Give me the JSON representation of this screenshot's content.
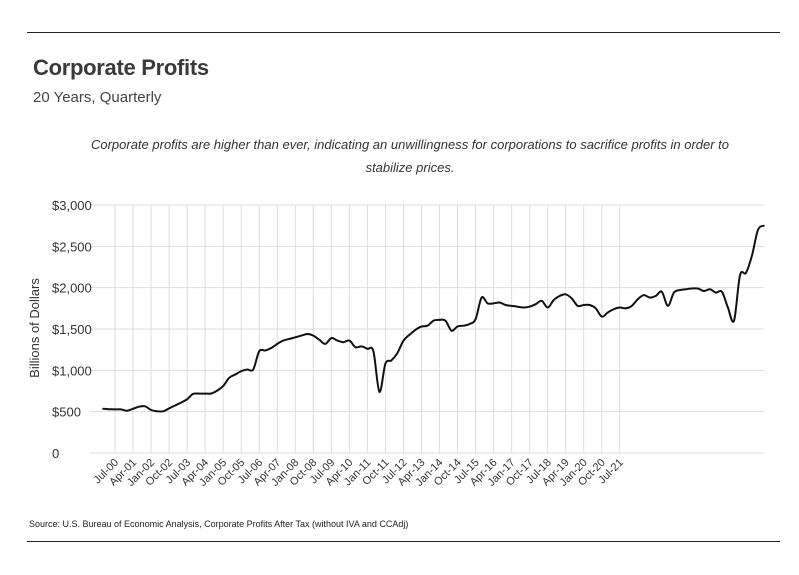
{
  "header": {
    "title": "Corporate Profits",
    "subtitle": "20 Years, Quarterly",
    "annotation": "Corporate profits are higher than ever, indicating an unwillingness for corporations to sacrifice profits in order to stabilize prices."
  },
  "footer": {
    "source": "Source: U.S. Bureau of Economic Analysis, Corporate Profits After Tax (without IVA and CCAdj)"
  },
  "colors": {
    "line": "#111111",
    "grid": "#dddddd",
    "rule": "#222222"
  },
  "chart_data": {
    "type": "line",
    "title": "Corporate Profits",
    "ylabel": "Billions of Dollars",
    "xlabel": "",
    "ylim": [
      0,
      3000
    ],
    "grid": "vertical and horizontal",
    "y_ticks": [
      {
        "value": 0,
        "label": "0"
      },
      {
        "value": 500,
        "label": "$500"
      },
      {
        "value": 1000,
        "label": "$1,000"
      },
      {
        "value": 1500,
        "label": "$1,500"
      },
      {
        "value": 2000,
        "label": "$2,000"
      },
      {
        "value": 2500,
        "label": "$2,500"
      },
      {
        "value": 3000,
        "label": "$3,000"
      }
    ],
    "x_tick_labels": [
      "Jul-00",
      "Apr-01",
      "Jan-02",
      "Oct-02",
      "Jul-03",
      "Apr-04",
      "Jan-05",
      "Oct-05",
      "Jul-06",
      "Apr-07",
      "Jan-08",
      "Oct-08",
      "Jul-09",
      "Apr-10",
      "Jan-11",
      "Oct-11",
      "Jul-12",
      "Apr-13",
      "Jan-14",
      "Oct-14",
      "Jul-15",
      "Apr-16",
      "Jan-17",
      "Oct-17",
      "Jul-18",
      "Apr-19",
      "Jan-20",
      "Oct-20",
      "Jul-21"
    ],
    "series": [
      {
        "name": "Corporate Profits After Tax",
        "start": "Jan-00",
        "frequency": "quarterly",
        "values": [
          535,
          530,
          528,
          528,
          512,
          535,
          560,
          565,
          520,
          505,
          505,
          540,
          575,
          610,
          650,
          715,
          718,
          718,
          720,
          755,
          810,
          910,
          950,
          990,
          1010,
          1010,
          1230,
          1240,
          1270,
          1320,
          1360,
          1380,
          1400,
          1420,
          1440,
          1420,
          1370,
          1320,
          1390,
          1360,
          1340,
          1360,
          1280,
          1290,
          1260,
          1230,
          740,
          1080,
          1120,
          1210,
          1360,
          1430,
          1490,
          1530,
          1540,
          1600,
          1610,
          1600,
          1480,
          1530,
          1540,
          1560,
          1620,
          1880,
          1810,
          1810,
          1820,
          1790,
          1780,
          1770,
          1760,
          1770,
          1800,
          1840,
          1760,
          1850,
          1900,
          1920,
          1870,
          1780,
          1790,
          1790,
          1750,
          1650,
          1700,
          1740,
          1760,
          1750,
          1780,
          1860,
          1910,
          1880,
          1900,
          1950,
          1780,
          1940,
          1970,
          1980,
          1990,
          1990,
          1960,
          1980,
          1940,
          1950,
          1760,
          1600,
          2150,
          2180,
          2390,
          2700,
          2750
        ]
      }
    ]
  }
}
